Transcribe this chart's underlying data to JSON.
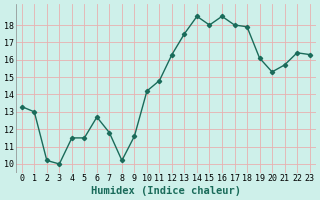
{
  "x": [
    0,
    1,
    2,
    3,
    4,
    5,
    6,
    7,
    8,
    9,
    10,
    11,
    12,
    13,
    14,
    15,
    16,
    17,
    18,
    19,
    20,
    21,
    22,
    23
  ],
  "y": [
    13.3,
    13.0,
    10.2,
    10.0,
    11.5,
    11.5,
    12.7,
    11.8,
    10.2,
    11.6,
    14.2,
    14.8,
    16.3,
    17.5,
    18.5,
    18.0,
    18.5,
    18.0,
    17.9,
    16.1,
    15.3,
    15.7,
    16.4,
    16.3
  ],
  "line_color": "#1a6b5a",
  "marker": "D",
  "marker_size": 2.2,
  "bg_color": "#cef0ea",
  "grid_color_major": "#e8b0b0",
  "grid_color_minor": "#cce8e0",
  "xlabel": "Humidex (Indice chaleur)",
  "ylim": [
    9.5,
    19.2
  ],
  "xlim": [
    -0.5,
    23.5
  ],
  "yticks": [
    10,
    11,
    12,
    13,
    14,
    15,
    16,
    17,
    18
  ],
  "xticks": [
    0,
    1,
    2,
    3,
    4,
    5,
    6,
    7,
    8,
    9,
    10,
    11,
    12,
    13,
    14,
    15,
    16,
    17,
    18,
    19,
    20,
    21,
    22,
    23
  ],
  "tick_label_fontsize": 6.0,
  "xlabel_fontsize": 7.5,
  "linewidth": 1.0
}
